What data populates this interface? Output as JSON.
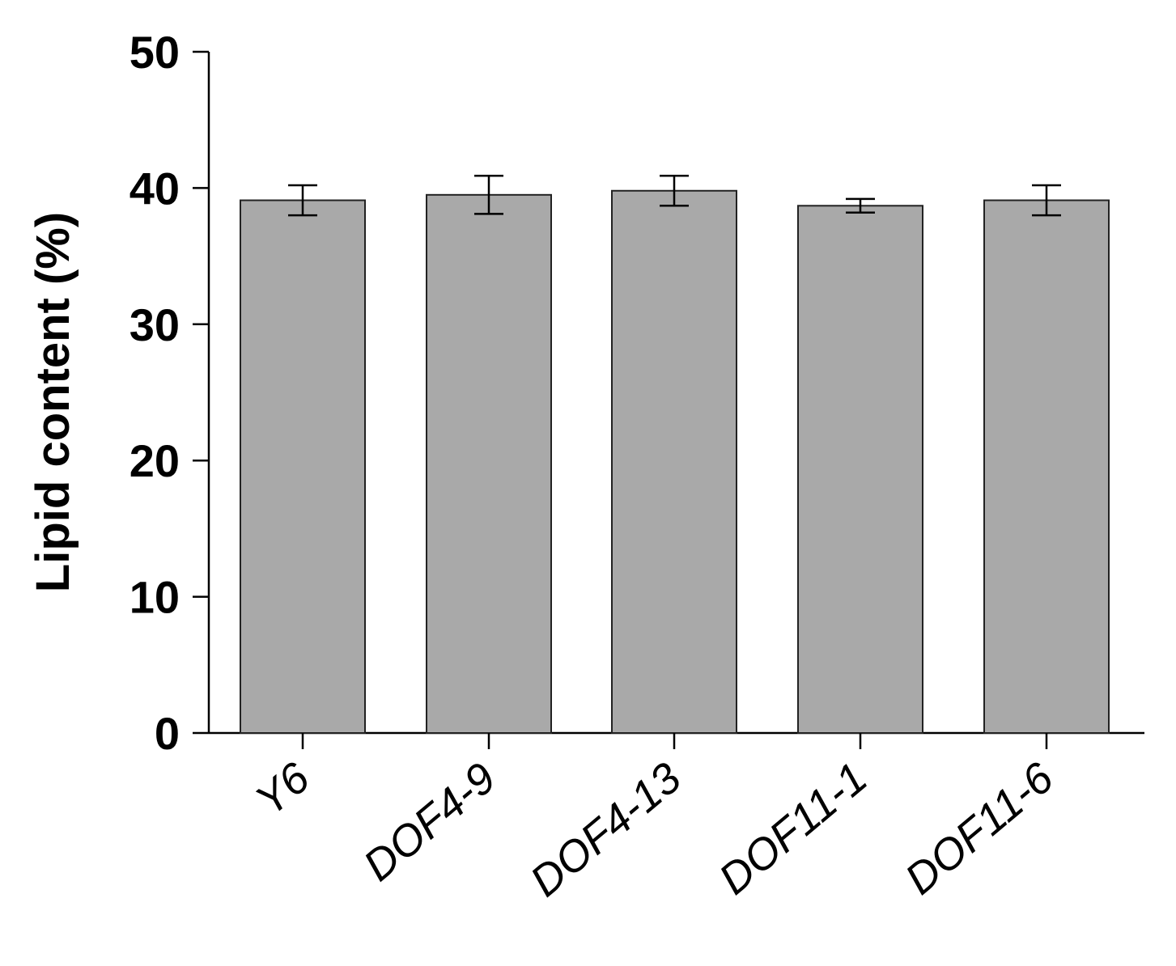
{
  "chart_data": {
    "type": "bar",
    "title": "",
    "xlabel": "",
    "ylabel": "Lipid content (%)",
    "ylim": [
      0,
      50
    ],
    "yticks": [
      "0",
      "10",
      "20",
      "30",
      "40",
      "50"
    ],
    "categories": [
      "Y6",
      "DOF4-9",
      "DOF4-13",
      "DOF11-1",
      "DOF11-6"
    ],
    "series": [
      {
        "values": [
          39.1,
          39.5,
          39.8,
          38.7,
          39.1
        ],
        "errors": [
          1.1,
          1.4,
          1.1,
          0.5,
          1.1
        ]
      }
    ],
    "grid": false,
    "bar_color": "#a9a9a9"
  }
}
